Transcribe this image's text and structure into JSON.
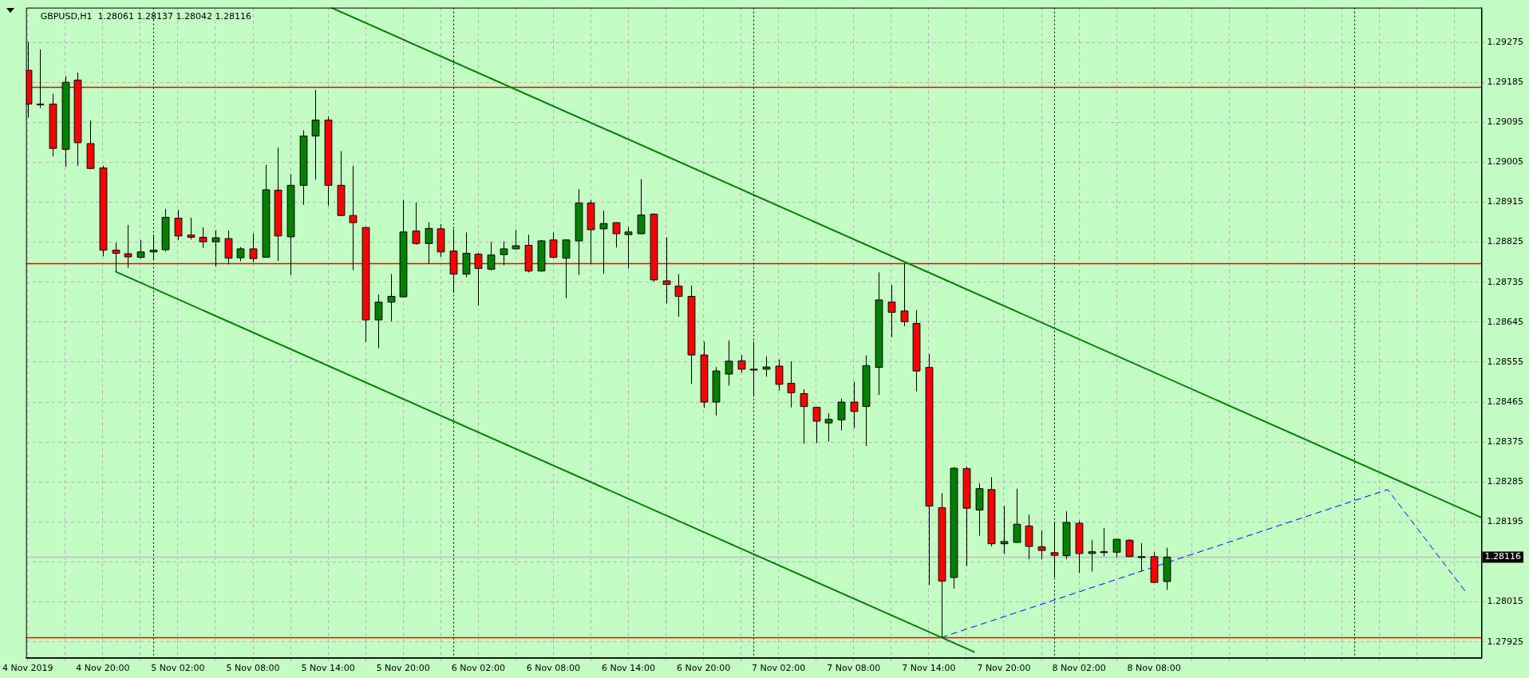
{
  "chart_data": {
    "type": "candlestick",
    "title": "GBPUSD,H1  1.28061 1.28137 1.28042 1.28116",
    "x": [
      "2019-11-04T14:00",
      "2019-11-04T15:00",
      "2019-11-04T16:00",
      "2019-11-04T17:00",
      "2019-11-04T18:00",
      "2019-11-04T19:00",
      "2019-11-04T20:00",
      "2019-11-04T21:00",
      "2019-11-04T22:00",
      "2019-11-04T23:00",
      "2019-11-05T00:00",
      "2019-11-05T01:00",
      "2019-11-05T02:00",
      "2019-11-05T03:00",
      "2019-11-05T04:00",
      "2019-11-05T05:00",
      "2019-11-05T06:00",
      "2019-11-05T07:00",
      "2019-11-05T08:00",
      "2019-11-05T09:00",
      "2019-11-05T10:00",
      "2019-11-05T11:00",
      "2019-11-05T12:00",
      "2019-11-05T13:00",
      "2019-11-05T14:00",
      "2019-11-05T15:00",
      "2019-11-05T16:00",
      "2019-11-05T17:00",
      "2019-11-05T18:00",
      "2019-11-05T19:00",
      "2019-11-05T20:00",
      "2019-11-05T21:00",
      "2019-11-05T22:00",
      "2019-11-05T23:00",
      "2019-11-06T00:00",
      "2019-11-06T01:00",
      "2019-11-06T02:00",
      "2019-11-06T03:00",
      "2019-11-06T04:00",
      "2019-11-06T05:00",
      "2019-11-06T06:00",
      "2019-11-06T07:00",
      "2019-11-06T08:00",
      "2019-11-06T09:00",
      "2019-11-06T10:00",
      "2019-11-06T11:00",
      "2019-11-06T12:00",
      "2019-11-06T13:00",
      "2019-11-06T14:00",
      "2019-11-06T15:00",
      "2019-11-06T16:00",
      "2019-11-06T17:00",
      "2019-11-06T18:00",
      "2019-11-06T19:00",
      "2019-11-06T20:00",
      "2019-11-06T21:00",
      "2019-11-06T22:00",
      "2019-11-06T23:00",
      "2019-11-07T00:00",
      "2019-11-07T01:00",
      "2019-11-07T02:00",
      "2019-11-07T03:00",
      "2019-11-07T04:00",
      "2019-11-07T05:00",
      "2019-11-07T06:00",
      "2019-11-07T07:00",
      "2019-11-07T08:00",
      "2019-11-07T09:00",
      "2019-11-07T10:00",
      "2019-11-07T11:00",
      "2019-11-07T12:00",
      "2019-11-07T13:00",
      "2019-11-07T14:00",
      "2019-11-07T15:00",
      "2019-11-07T16:00",
      "2019-11-07T17:00",
      "2019-11-07T18:00",
      "2019-11-07T19:00",
      "2019-11-07T20:00",
      "2019-11-07T21:00",
      "2019-11-07T22:00",
      "2019-11-07T23:00",
      "2019-11-08T00:00",
      "2019-11-08T01:00",
      "2019-11-08T02:00",
      "2019-11-08T03:00",
      "2019-11-08T04:00",
      "2019-11-08T05:00",
      "2019-11-08T06:00",
      "2019-11-08T07:00",
      "2019-11-08T08:00",
      "2019-11-08T09:00"
    ],
    "ohlc": [
      [
        1.29212,
        1.29276,
        1.29106,
        1.29136
      ],
      [
        1.29136,
        1.29259,
        1.29127,
        1.29136
      ],
      [
        1.29136,
        1.29159,
        1.29018,
        1.29036
      ],
      [
        1.29034,
        1.29199,
        1.28995,
        1.29185
      ],
      [
        1.2919,
        1.29207,
        1.28997,
        1.29049
      ],
      [
        1.29047,
        1.29099,
        1.28989,
        1.28991
      ],
      [
        1.28992,
        1.28997,
        1.28793,
        1.28807
      ],
      [
        1.28807,
        1.28824,
        1.28759,
        1.288
      ],
      [
        1.28799,
        1.28864,
        1.28767,
        1.28792
      ],
      [
        1.28791,
        1.2883,
        1.28788,
        1.28803
      ],
      [
        1.28803,
        1.28842,
        1.28785,
        1.28807
      ],
      [
        1.28808,
        1.289,
        1.28804,
        1.28881
      ],
      [
        1.28879,
        1.28898,
        1.2883,
        1.28839
      ],
      [
        1.28841,
        1.2888,
        1.28831,
        1.28836
      ],
      [
        1.28836,
        1.28858,
        1.28812,
        1.28826
      ],
      [
        1.28826,
        1.28852,
        1.2877,
        1.28835
      ],
      [
        1.28833,
        1.28851,
        1.28775,
        1.28789
      ],
      [
        1.2879,
        1.28814,
        1.28782,
        1.2881
      ],
      [
        1.2881,
        1.28845,
        1.2878,
        1.28788
      ],
      [
        1.28791,
        1.28999,
        1.2879,
        1.28943
      ],
      [
        1.28942,
        1.29038,
        1.28783,
        1.28839
      ],
      [
        1.28837,
        1.28978,
        1.28751,
        1.28953
      ],
      [
        1.28953,
        1.29077,
        1.28909,
        1.29064
      ],
      [
        1.29064,
        1.29168,
        1.28966,
        1.291
      ],
      [
        1.291,
        1.29108,
        1.28907,
        1.28953
      ],
      [
        1.28953,
        1.2903,
        1.28884,
        1.28885
      ],
      [
        1.28885,
        1.28997,
        1.28762,
        1.28869
      ],
      [
        1.28858,
        1.28859,
        1.286,
        1.2865
      ],
      [
        1.2865,
        1.28707,
        1.28586,
        1.2869
      ],
      [
        1.2869,
        1.28753,
        1.28647,
        1.28703
      ],
      [
        1.28702,
        1.2892,
        1.28701,
        1.28848
      ],
      [
        1.2885,
        1.28914,
        1.28819,
        1.28822
      ],
      [
        1.28822,
        1.2887,
        1.28776,
        1.28856
      ],
      [
        1.28855,
        1.28866,
        1.28792,
        1.28803
      ],
      [
        1.28805,
        1.28854,
        1.28711,
        1.28753
      ],
      [
        1.28753,
        1.28847,
        1.28746,
        1.288
      ],
      [
        1.28798,
        1.28801,
        1.28682,
        1.28766
      ],
      [
        1.28764,
        1.28826,
        1.28761,
        1.28796
      ],
      [
        1.28797,
        1.28827,
        1.28773,
        1.2881
      ],
      [
        1.2881,
        1.28853,
        1.28809,
        1.28817
      ],
      [
        1.28818,
        1.28842,
        1.28757,
        1.2876
      ],
      [
        1.2876,
        1.2883,
        1.28759,
        1.28828
      ],
      [
        1.2883,
        1.28847,
        1.28789,
        1.28791
      ],
      [
        1.28789,
        1.28831,
        1.28699,
        1.2883
      ],
      [
        1.28828,
        1.28944,
        1.28751,
        1.28913
      ],
      [
        1.28913,
        1.2892,
        1.28776,
        1.28853
      ],
      [
        1.28855,
        1.28896,
        1.28754,
        1.28867
      ],
      [
        1.28869,
        1.2887,
        1.28813,
        1.28844
      ],
      [
        1.28842,
        1.28859,
        1.28766,
        1.28848
      ],
      [
        1.28844,
        1.28967,
        1.28843,
        1.28886
      ],
      [
        1.28888,
        1.2889,
        1.28736,
        1.2874
      ],
      [
        1.28738,
        1.28836,
        1.28687,
        1.2873
      ],
      [
        1.28726,
        1.28753,
        1.28657,
        1.28703
      ],
      [
        1.28703,
        1.28727,
        1.28506,
        1.28571
      ],
      [
        1.28571,
        1.28601,
        1.28452,
        1.28465
      ],
      [
        1.28465,
        1.28544,
        1.28435,
        1.28535
      ],
      [
        1.28528,
        1.28604,
        1.28502,
        1.28557
      ],
      [
        1.28558,
        1.28571,
        1.28531,
        1.28539
      ],
      [
        1.28539,
        1.28601,
        1.28477,
        1.28537
      ],
      [
        1.28539,
        1.28568,
        1.28522,
        1.28544
      ],
      [
        1.28546,
        1.28561,
        1.28491,
        1.28505
      ],
      [
        1.28507,
        1.28557,
        1.28453,
        1.28486
      ],
      [
        1.28484,
        1.28494,
        1.28371,
        1.28455
      ],
      [
        1.28453,
        1.28454,
        1.28373,
        1.28422
      ],
      [
        1.28418,
        1.2844,
        1.28376,
        1.28426
      ],
      [
        1.28425,
        1.28473,
        1.28401,
        1.28465
      ],
      [
        1.28465,
        1.28511,
        1.28406,
        1.28444
      ],
      [
        1.28455,
        1.2857,
        1.28366,
        1.28547
      ],
      [
        1.28543,
        1.28757,
        1.28481,
        1.28695
      ],
      [
        1.2869,
        1.28729,
        1.28611,
        1.28667
      ],
      [
        1.2867,
        1.28777,
        1.28636,
        1.28646
      ],
      [
        1.28642,
        1.28672,
        1.28489,
        1.28535
      ],
      [
        1.28543,
        1.28573,
        1.28053,
        1.28231
      ],
      [
        1.28227,
        1.2826,
        1.27935,
        1.28062
      ],
      [
        1.2807,
        1.28318,
        1.28045,
        1.28316
      ],
      [
        1.28315,
        1.2832,
        1.28096,
        1.28226
      ],
      [
        1.28222,
        1.28282,
        1.28164,
        1.2827
      ],
      [
        1.28268,
        1.28296,
        1.2814,
        1.28146
      ],
      [
        1.28146,
        1.28231,
        1.28123,
        1.28151
      ],
      [
        1.28149,
        1.2827,
        1.28148,
        1.2819
      ],
      [
        1.28186,
        1.28212,
        1.28111,
        1.2814
      ],
      [
        1.28139,
        1.28176,
        1.28111,
        1.28131
      ],
      [
        1.28126,
        1.28196,
        1.2807,
        1.2812
      ],
      [
        1.28119,
        1.28219,
        1.28111,
        1.28194
      ],
      [
        1.28192,
        1.28198,
        1.2808,
        1.28124
      ],
      [
        1.28124,
        1.28154,
        1.28083,
        1.28128
      ],
      [
        1.28128,
        1.28181,
        1.28118,
        1.28128
      ],
      [
        1.28127,
        1.28157,
        1.28116,
        1.28156
      ],
      [
        1.28154,
        1.28156,
        1.28116,
        1.28117
      ],
      [
        1.28117,
        1.28147,
        1.28084,
        1.28115
      ],
      [
        1.28117,
        1.28127,
        1.28058,
        1.28059
      ],
      [
        1.28061,
        1.28137,
        1.28042,
        1.28116
      ]
    ],
    "colors": [
      "#ff0000",
      "#ff0000",
      "#ff0000",
      "#008000",
      "#ff0000",
      "#ff0000",
      "#ff0000",
      "#ff0000",
      "#ff0000",
      "#008000",
      "#008000",
      "#008000",
      "#ff0000",
      "#ff0000",
      "#ff0000",
      "#008000",
      "#ff0000",
      "#008000",
      "#ff0000",
      "#008000",
      "#ff0000",
      "#008000",
      "#008000",
      "#008000",
      "#ff0000",
      "#ff0000",
      "#ff0000",
      "#ff0000",
      "#008000",
      "#008000",
      "#008000",
      "#ff0000",
      "#008000",
      "#ff0000",
      "#ff0000",
      "#008000",
      "#ff0000",
      "#008000",
      "#008000",
      "#008000",
      "#ff0000",
      "#008000",
      "#ff0000",
      "#008000",
      "#008000",
      "#ff0000",
      "#008000",
      "#ff0000",
      "#008000",
      "#008000",
      "#ff0000",
      "#ff0000",
      "#ff0000",
      "#ff0000",
      "#ff0000",
      "#008000",
      "#008000",
      "#ff0000",
      "#ff0000",
      "#008000",
      "#ff0000",
      "#ff0000",
      "#ff0000",
      "#ff0000",
      "#008000",
      "#008000",
      "#ff0000",
      "#008000",
      "#008000",
      "#ff0000",
      "#ff0000",
      "#ff0000",
      "#ff0000",
      "#ff0000",
      "#008000",
      "#ff0000",
      "#008000",
      "#ff0000",
      "#008000",
      "#008000",
      "#ff0000",
      "#ff0000",
      "#ff0000",
      "#008000",
      "#ff0000",
      "#008000",
      "#ff0000",
      "#008000",
      "#ff0000",
      "#ff0000",
      "#ff0000",
      "#008000"
    ],
    "series": [
      {
        "type": "line",
        "color": "#008000",
        "x": [
          "2019-11-05T14:15",
          "2019-11-09T10:10"
        ],
        "values": [
          1.29353,
          1.28205
        ]
      },
      {
        "type": "line",
        "color": "#008000",
        "x": [
          "2019-11-04T21:00",
          "2019-11-07T17:40"
        ],
        "values": [
          1.28759,
          1.27902
        ]
      },
      {
        "type": "line",
        "color": "#0000ff",
        "line_style": "dashed",
        "x": [
          "2019-11-07T15:00",
          "2019-11-09T02:40",
          "2019-11-09T09:00"
        ],
        "values": [
          1.27935,
          1.28268,
          1.28034
        ]
      }
    ],
    "marker": "none",
    "ref_lines": [
      {
        "axis": "y",
        "value": 1.29174,
        "color": "#ff0000"
      },
      {
        "axis": "y",
        "value": 1.28777,
        "color": "#ff0000"
      },
      {
        "axis": "y",
        "value": 1.27935,
        "color": "#ff0000"
      },
      {
        "axis": "y",
        "value": 1.28116,
        "label": "1.28116",
        "color": "#c0c0c0"
      },
      {
        "axis": "x",
        "value": "2019-11-05T00:00",
        "color": "#000000",
        "line_style": "dotted"
      },
      {
        "axis": "x",
        "value": "2019-11-06T00:00",
        "color": "#000000",
        "line_style": "dotted"
      },
      {
        "axis": "x",
        "value": "2019-11-07T00:00",
        "color": "#000000",
        "line_style": "dotted"
      },
      {
        "axis": "x",
        "value": "2019-11-08T00:00",
        "color": "#000000",
        "line_style": "dotted"
      },
      {
        "axis": "x",
        "value": "2019-11-09T00:00",
        "color": "#000000",
        "line_style": "dotted"
      }
    ],
    "xlim": [
      "2019-11-04T13:52",
      "2019-11-09T10:10"
    ],
    "ylim": [
      1.27889,
      1.29353
    ],
    "xticks": [
      {
        "value": "2019-11-04T14:00",
        "label": "4 Nov 2019"
      },
      {
        "value": "2019-11-04T17:00",
        "label": null
      },
      {
        "value": "2019-11-04T20:00",
        "label": "4 Nov 20:00"
      },
      {
        "value": "2019-11-04T23:00",
        "label": null
      },
      {
        "value": "2019-11-05T02:00",
        "label": "5 Nov 02:00"
      },
      {
        "value": "2019-11-05T05:00",
        "label": null
      },
      {
        "value": "2019-11-05T08:00",
        "label": "5 Nov 08:00"
      },
      {
        "value": "2019-11-05T11:00",
        "label": null
      },
      {
        "value": "2019-11-05T14:00",
        "label": "5 Nov 14:00"
      },
      {
        "value": "2019-11-05T17:00",
        "label": null
      },
      {
        "value": "2019-11-05T20:00",
        "label": "5 Nov 20:00"
      },
      {
        "value": "2019-11-05T23:00",
        "label": null
      },
      {
        "value": "2019-11-06T02:00",
        "label": "6 Nov 02:00"
      },
      {
        "value": "2019-11-06T05:00",
        "label": null
      },
      {
        "value": "2019-11-06T08:00",
        "label": "6 Nov 08:00"
      },
      {
        "value": "2019-11-06T11:00",
        "label": null
      },
      {
        "value": "2019-11-06T14:00",
        "label": "6 Nov 14:00"
      },
      {
        "value": "2019-11-06T17:00",
        "label": null
      },
      {
        "value": "2019-11-06T20:00",
        "label": "6 Nov 20:00"
      },
      {
        "value": "2019-11-06T23:00",
        "label": null
      },
      {
        "value": "2019-11-07T02:00",
        "label": "7 Nov 02:00"
      },
      {
        "value": "2019-11-07T05:00",
        "label": null
      },
      {
        "value": "2019-11-07T08:00",
        "label": "7 Nov 08:00"
      },
      {
        "value": "2019-11-07T11:00",
        "label": null
      },
      {
        "value": "2019-11-07T14:00",
        "label": "7 Nov 14:00"
      },
      {
        "value": "2019-11-07T17:00",
        "label": null
      },
      {
        "value": "2019-11-07T20:00",
        "label": "7 Nov 20:00"
      },
      {
        "value": "2019-11-07T23:00",
        "label": null
      },
      {
        "value": "2019-11-08T02:00",
        "label": "8 Nov 02:00"
      },
      {
        "value": "2019-11-08T05:00",
        "label": null
      },
      {
        "value": "2019-11-08T08:00",
        "label": "8 Nov 08:00"
      },
      {
        "value": "2019-11-08T11:00",
        "label": null
      },
      {
        "value": "2019-11-08T14:00",
        "label": null
      },
      {
        "value": "2019-11-08T17:00",
        "label": null
      },
      {
        "value": "2019-11-08T20:00",
        "label": null
      },
      {
        "value": "2019-11-08T23:00",
        "label": null
      },
      {
        "value": "2019-11-09T02:00",
        "label": null
      },
      {
        "value": "2019-11-09T05:00",
        "label": null
      },
      {
        "value": "2019-11-09T08:00",
        "label": null
      }
    ],
    "yticks": [
      1.29275,
      1.29185,
      1.29095,
      1.29005,
      1.28915,
      1.28825,
      1.28735,
      1.28645,
      1.28555,
      1.28465,
      1.28375,
      1.28285,
      1.28195,
      {
        "value": 1.28105,
        "label": null
      },
      1.28015,
      1.27925
    ],
    "grid": true
  }
}
